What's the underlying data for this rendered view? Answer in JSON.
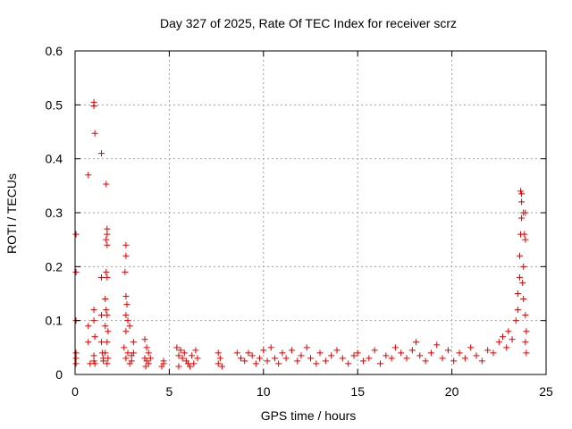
{
  "chart_data": {
    "type": "scatter",
    "title": "Day 327 of 2025, Rate Of TEC Index for receiver scrz",
    "xlabel": "GPS time / hours",
    "ylabel": "ROTI / TECUs",
    "xlim": [
      0,
      25
    ],
    "ylim": [
      0,
      0.6
    ],
    "xticks": [
      0,
      5,
      10,
      15,
      20,
      25
    ],
    "yticks": [
      0,
      0.1,
      0.2,
      0.3,
      0.4,
      0.5,
      0.6
    ],
    "xtick_labels": [
      "0",
      "5",
      "10",
      "15",
      "20",
      "25"
    ],
    "ytick_labels": [
      "0",
      "0.1",
      "0.2",
      "0.3",
      "0.4",
      "0.5",
      "0.6"
    ],
    "grid": true,
    "marker": "+",
    "color": "#e00000",
    "series": [
      {
        "points": [
          [
            0.05,
            0.26
          ],
          [
            0.05,
            0.19
          ],
          [
            0.05,
            0.1
          ],
          [
            0.05,
            0.04
          ],
          [
            0.05,
            0.03
          ],
          [
            0.05,
            0.02
          ],
          [
            0.7,
            0.37
          ],
          [
            0.7,
            0.09
          ],
          [
            0.7,
            0.06
          ],
          [
            0.8,
            0.02
          ],
          [
            1.0,
            0.505
          ],
          [
            1.0,
            0.498
          ],
          [
            1.05,
            0.447
          ],
          [
            1.0,
            0.12
          ],
          [
            1.0,
            0.1
          ],
          [
            1.05,
            0.07
          ],
          [
            1.0,
            0.035
          ],
          [
            1.0,
            0.025
          ],
          [
            1.05,
            0.02
          ],
          [
            1.4,
            0.41
          ],
          [
            1.4,
            0.18
          ],
          [
            1.4,
            0.11
          ],
          [
            1.4,
            0.06
          ],
          [
            1.45,
            0.04
          ],
          [
            1.5,
            0.03
          ],
          [
            1.5,
            0.025
          ],
          [
            1.65,
            0.353
          ],
          [
            1.7,
            0.27
          ],
          [
            1.7,
            0.26
          ],
          [
            1.65,
            0.25
          ],
          [
            1.7,
            0.24
          ],
          [
            1.65,
            0.19
          ],
          [
            1.7,
            0.18
          ],
          [
            1.6,
            0.14
          ],
          [
            1.65,
            0.12
          ],
          [
            1.7,
            0.11
          ],
          [
            1.6,
            0.09
          ],
          [
            1.75,
            0.08
          ],
          [
            1.7,
            0.06
          ],
          [
            1.6,
            0.04
          ],
          [
            1.75,
            0.03
          ],
          [
            1.7,
            0.02
          ],
          [
            2.7,
            0.24
          ],
          [
            2.7,
            0.22
          ],
          [
            2.65,
            0.19
          ],
          [
            2.7,
            0.145
          ],
          [
            2.75,
            0.13
          ],
          [
            2.7,
            0.11
          ],
          [
            2.8,
            0.1
          ],
          [
            2.7,
            0.08
          ],
          [
            2.9,
            0.09
          ],
          [
            2.6,
            0.05
          ],
          [
            2.8,
            0.04
          ],
          [
            2.7,
            0.03
          ],
          [
            3.0,
            0.025
          ],
          [
            2.9,
            0.02
          ],
          [
            3.1,
            0.06
          ],
          [
            3.1,
            0.04
          ],
          [
            3.0,
            0.035
          ],
          [
            3.7,
            0.065
          ],
          [
            3.8,
            0.05
          ],
          [
            3.9,
            0.04
          ],
          [
            3.7,
            0.03
          ],
          [
            3.8,
            0.025
          ],
          [
            3.9,
            0.02
          ],
          [
            4.0,
            0.03
          ],
          [
            3.75,
            0.015
          ],
          [
            4.7,
            0.025
          ],
          [
            4.7,
            0.02
          ],
          [
            4.6,
            0.015
          ],
          [
            5.4,
            0.05
          ],
          [
            5.6,
            0.045
          ],
          [
            5.8,
            0.04
          ],
          [
            5.5,
            0.035
          ],
          [
            5.7,
            0.03
          ],
          [
            5.9,
            0.025
          ],
          [
            6.0,
            0.02
          ],
          [
            6.2,
            0.035
          ],
          [
            6.4,
            0.045
          ],
          [
            6.5,
            0.03
          ],
          [
            6.3,
            0.02
          ],
          [
            5.5,
            0.015
          ],
          [
            6.1,
            0.015
          ],
          [
            7.6,
            0.04
          ],
          [
            7.7,
            0.03
          ],
          [
            7.6,
            0.02
          ],
          [
            7.8,
            0.015
          ],
          [
            8.6,
            0.04
          ],
          [
            8.8,
            0.03
          ],
          [
            9.0,
            0.025
          ],
          [
            9.2,
            0.04
          ],
          [
            9.4,
            0.035
          ],
          [
            9.6,
            0.02
          ],
          [
            9.8,
            0.03
          ],
          [
            10.0,
            0.045
          ],
          [
            10.2,
            0.025
          ],
          [
            10.4,
            0.05
          ],
          [
            10.6,
            0.03
          ],
          [
            10.8,
            0.02
          ],
          [
            11.0,
            0.04
          ],
          [
            11.2,
            0.03
          ],
          [
            11.5,
            0.045
          ],
          [
            11.8,
            0.025
          ],
          [
            12.0,
            0.035
          ],
          [
            12.3,
            0.05
          ],
          [
            12.5,
            0.03
          ],
          [
            12.8,
            0.02
          ],
          [
            13.0,
            0.04
          ],
          [
            13.3,
            0.025
          ],
          [
            13.6,
            0.035
          ],
          [
            13.9,
            0.045
          ],
          [
            14.2,
            0.03
          ],
          [
            14.5,
            0.02
          ],
          [
            14.8,
            0.035
          ],
          [
            15.0,
            0.04
          ],
          [
            15.3,
            0.025
          ],
          [
            15.6,
            0.03
          ],
          [
            15.9,
            0.045
          ],
          [
            16.2,
            0.02
          ],
          [
            16.5,
            0.035
          ],
          [
            16.8,
            0.03
          ],
          [
            17.0,
            0.05
          ],
          [
            17.3,
            0.04
          ],
          [
            17.6,
            0.03
          ],
          [
            17.9,
            0.045
          ],
          [
            18.1,
            0.06
          ],
          [
            18.3,
            0.035
          ],
          [
            18.6,
            0.025
          ],
          [
            18.9,
            0.04
          ],
          [
            19.2,
            0.055
          ],
          [
            19.5,
            0.03
          ],
          [
            19.8,
            0.045
          ],
          [
            20.1,
            0.025
          ],
          [
            20.4,
            0.04
          ],
          [
            20.7,
            0.03
          ],
          [
            21.0,
            0.05
          ],
          [
            21.3,
            0.035
          ],
          [
            21.6,
            0.025
          ],
          [
            21.9,
            0.045
          ],
          [
            22.2,
            0.04
          ],
          [
            22.5,
            0.06
          ],
          [
            22.7,
            0.07
          ],
          [
            22.9,
            0.05
          ],
          [
            23.0,
            0.08
          ],
          [
            23.2,
            0.065
          ],
          [
            23.4,
            0.1
          ],
          [
            23.5,
            0.12
          ],
          [
            23.5,
            0.15
          ],
          [
            23.6,
            0.18
          ],
          [
            23.6,
            0.22
          ],
          [
            23.65,
            0.26
          ],
          [
            23.7,
            0.29
          ],
          [
            23.7,
            0.32
          ],
          [
            23.65,
            0.34
          ],
          [
            23.7,
            0.335
          ],
          [
            23.8,
            0.3
          ],
          [
            23.9,
            0.3
          ],
          [
            23.85,
            0.26
          ],
          [
            23.9,
            0.25
          ],
          [
            23.8,
            0.2
          ],
          [
            23.75,
            0.17
          ],
          [
            23.8,
            0.14
          ],
          [
            23.9,
            0.11
          ],
          [
            23.95,
            0.08
          ],
          [
            23.9,
            0.06
          ],
          [
            23.95,
            0.04
          ]
        ]
      }
    ]
  }
}
